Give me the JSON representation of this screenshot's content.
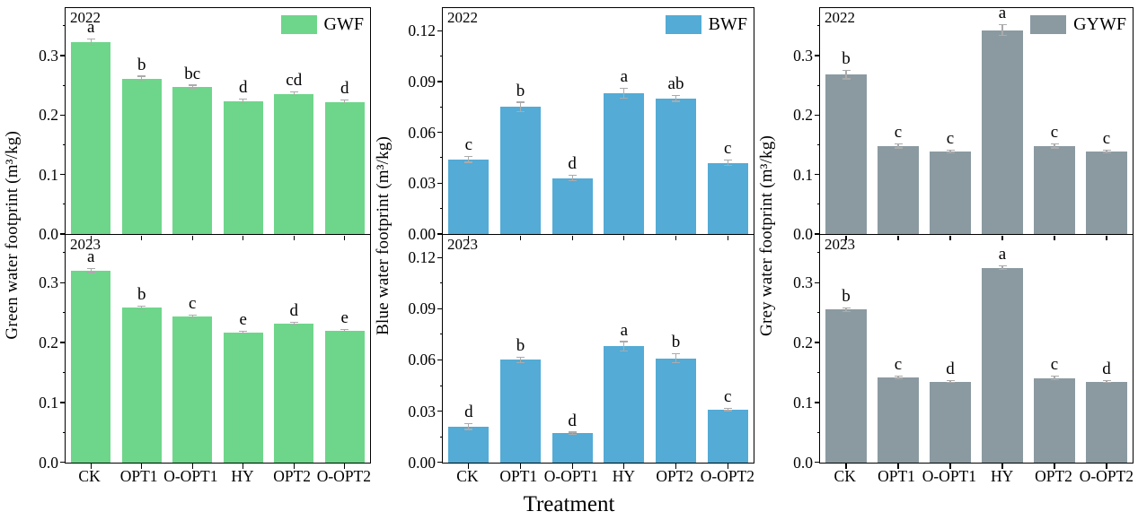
{
  "xlabel": "Treatment",
  "categories": [
    "CK",
    "OPT1",
    "O-OPT1",
    "HY",
    "OPT2",
    "O-OPT2"
  ],
  "error_bar_color": "#ababab",
  "chart_data": [
    {
      "type": "bar",
      "panel": "green-2022",
      "year": "2022",
      "legend": "GWF",
      "legend_position": "top-right",
      "color": "#6ed68a",
      "ylabel": "Green water footprint (m³/kg)",
      "ylim": [
        0,
        0.38
      ],
      "grid": false,
      "yticks": [
        0,
        0.1,
        0.2,
        0.3
      ],
      "ytick_labels": [
        "0.0",
        "0.1",
        "0.2",
        "0.3"
      ],
      "minor_yticks": [
        0.05,
        0.15,
        0.25,
        0.35
      ],
      "categories": [
        "CK",
        "OPT1",
        "O-OPT1",
        "HY",
        "OPT2",
        "O-OPT2"
      ],
      "values": [
        0.322,
        0.261,
        0.248,
        0.223,
        0.236,
        0.222
      ],
      "errors": [
        0.006,
        0.005,
        0.003,
        0.005,
        0.004,
        0.004
      ],
      "sig_letters": [
        "a",
        "b",
        "bc",
        "d",
        "cd",
        "d"
      ]
    },
    {
      "type": "bar",
      "panel": "green-2023",
      "year": "2023",
      "color": "#6ed68a",
      "ylabel": "Green water footprint (m³/kg)",
      "ylim": [
        0,
        0.38
      ],
      "grid": false,
      "yticks": [
        0,
        0.1,
        0.2,
        0.3
      ],
      "ytick_labels": [
        "0.0",
        "0.1",
        "0.2",
        "0.3"
      ],
      "minor_yticks": [
        0.05,
        0.15,
        0.25,
        0.35
      ],
      "categories": [
        "CK",
        "OPT1",
        "O-OPT1",
        "HY",
        "OPT2",
        "O-OPT2"
      ],
      "values": [
        0.32,
        0.258,
        0.244,
        0.217,
        0.232,
        0.22
      ],
      "errors": [
        0.004,
        0.004,
        0.003,
        0.002,
        0.003,
        0.002
      ],
      "sig_letters": [
        "a",
        "b",
        "c",
        "e",
        "d",
        "e"
      ]
    },
    {
      "type": "bar",
      "panel": "blue-2022",
      "year": "2022",
      "legend": "BWF",
      "legend_position": "top-right",
      "color": "#53abd6",
      "ylabel": "Blue water footprint (m³/kg)",
      "ylim": [
        0,
        0.1333
      ],
      "grid": false,
      "yticks": [
        0,
        0.03,
        0.06,
        0.09,
        0.12
      ],
      "ytick_labels": [
        "0.00",
        "0.03",
        "0.06",
        "0.09",
        "0.12"
      ],
      "minor_yticks": [
        0.015,
        0.045,
        0.075,
        0.105
      ],
      "categories": [
        "CK",
        "OPT1",
        "O-OPT1",
        "HY",
        "OPT2",
        "O-OPT2"
      ],
      "values": [
        0.044,
        0.075,
        0.033,
        0.083,
        0.08,
        0.042
      ],
      "errors": [
        0.002,
        0.003,
        0.002,
        0.003,
        0.002,
        0.002
      ],
      "sig_letters": [
        "c",
        "b",
        "d",
        "a",
        "ab",
        "c"
      ]
    },
    {
      "type": "bar",
      "panel": "blue-2023",
      "year": "2023",
      "color": "#53abd6",
      "ylabel": "Blue water footprint (m³/kg)",
      "ylim": [
        0,
        0.1333
      ],
      "grid": false,
      "yticks": [
        0,
        0.03,
        0.06,
        0.09,
        0.12
      ],
      "ytick_labels": [
        "0.00",
        "0.03",
        "0.06",
        "0.09",
        "0.12"
      ],
      "minor_yticks": [
        0.015,
        0.045,
        0.075,
        0.105
      ],
      "categories": [
        "CK",
        "OPT1",
        "O-OPT1",
        "HY",
        "OPT2",
        "O-OPT2"
      ],
      "values": [
        0.021,
        0.06,
        0.017,
        0.068,
        0.061,
        0.031
      ],
      "errors": [
        0.002,
        0.002,
        0.001,
        0.003,
        0.003,
        0.001
      ],
      "sig_letters": [
        "d",
        "b",
        "d",
        "a",
        "b",
        "c"
      ]
    },
    {
      "type": "bar",
      "panel": "grey-2022",
      "year": "2022",
      "legend": "GYWF",
      "legend_position": "top-right",
      "color": "#8b9aa1",
      "ylabel": "Grey water footprint (m³/kg)",
      "ylim": [
        0,
        0.38
      ],
      "grid": false,
      "yticks": [
        0,
        0.1,
        0.2,
        0.3
      ],
      "ytick_labels": [
        "0.0",
        "0.1",
        "0.2",
        "0.3"
      ],
      "minor_yticks": [
        0.05,
        0.15,
        0.25,
        0.35
      ],
      "categories": [
        "CK",
        "OPT1",
        "O-OPT1",
        "HY",
        "OPT2",
        "O-OPT2"
      ],
      "values": [
        0.268,
        0.148,
        0.139,
        0.343,
        0.148,
        0.139
      ],
      "errors": [
        0.008,
        0.004,
        0.003,
        0.01,
        0.004,
        0.003
      ],
      "sig_letters": [
        "b",
        "c",
        "c",
        "a",
        "c",
        "c"
      ]
    },
    {
      "type": "bar",
      "panel": "grey-2023",
      "year": "2023",
      "color": "#8b9aa1",
      "ylabel": "Grey water footprint (m³/kg)",
      "ylim": [
        0,
        0.38
      ],
      "grid": false,
      "yticks": [
        0,
        0.1,
        0.2,
        0.3
      ],
      "ytick_labels": [
        "0.0",
        "0.1",
        "0.2",
        "0.3"
      ],
      "minor_yticks": [
        0.05,
        0.15,
        0.25,
        0.35
      ],
      "categories": [
        "CK",
        "OPT1",
        "O-OPT1",
        "HY",
        "OPT2",
        "O-OPT2"
      ],
      "values": [
        0.255,
        0.142,
        0.135,
        0.325,
        0.141,
        0.135
      ],
      "errors": [
        0.004,
        0.003,
        0.002,
        0.004,
        0.004,
        0.002
      ],
      "sig_letters": [
        "b",
        "c",
        "d",
        "a",
        "c",
        "d"
      ]
    }
  ]
}
